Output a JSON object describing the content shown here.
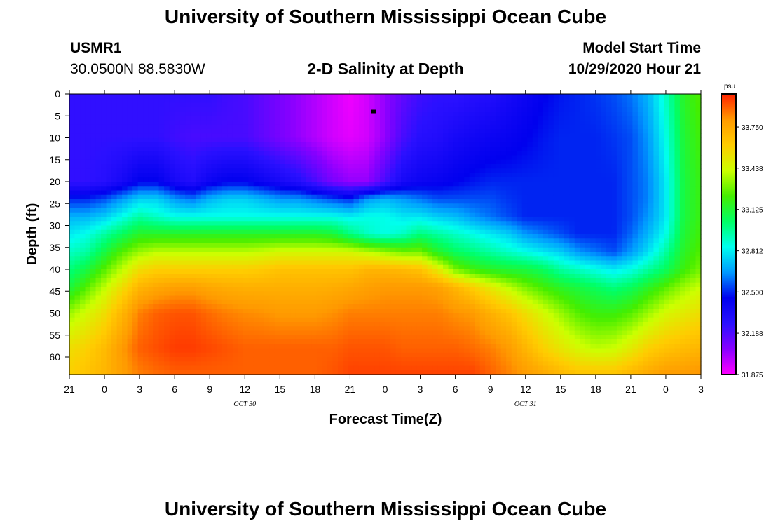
{
  "header": {
    "title": "University of Southern Mississippi Ocean Cube",
    "station": "USMR1",
    "coords": "30.0500N 88.5830W",
    "subtitle": "2-D Salinity at Depth",
    "model_label": "Model Start Time",
    "model_time": "10/29/2020 Hour 21"
  },
  "footer": {
    "title": "University of Southern Mississippi Ocean Cube"
  },
  "chart_data": {
    "type": "heatmap",
    "title": "2-D Salinity at Depth",
    "xlabel": "Forecast Time(Z)",
    "ylabel": "Depth (ft)",
    "x_hours": [
      0,
      3,
      6,
      9,
      12,
      15,
      18,
      21,
      24,
      27,
      30,
      33,
      36,
      39,
      42,
      45,
      48,
      51,
      54
    ],
    "x_tick_labels": [
      "21",
      "0",
      "3",
      "6",
      "9",
      "12",
      "15",
      "18",
      "21",
      "0",
      "3",
      "6",
      "9",
      "12",
      "15",
      "18",
      "21",
      "0",
      "3"
    ],
    "date_labels": [
      {
        "text": "OCT 30",
        "hour": 15
      },
      {
        "text": "OCT 31",
        "hour": 39
      }
    ],
    "xlim": [
      0,
      54
    ],
    "y_ticks": [
      0,
      5,
      10,
      15,
      20,
      25,
      30,
      35,
      40,
      45,
      50,
      55,
      60
    ],
    "ylim": [
      0,
      64
    ],
    "colorbar": {
      "unit": "psu",
      "range": [
        31.875,
        34.0
      ],
      "ticks": [
        "33.750",
        "33.438",
        "33.125",
        "32.812",
        "32.500",
        "32.188",
        "31.875"
      ],
      "tick_values": [
        33.75,
        33.438,
        33.125,
        32.812,
        32.5,
        32.188,
        31.875
      ],
      "colors": [
        "#ff00ff",
        "#8800ff",
        "#2a10ff",
        "#0000ee",
        "#0099ff",
        "#00ffee",
        "#00ff66",
        "#44ee00",
        "#ccff00",
        "#ffcc00",
        "#ff9900",
        "#ff2200"
      ]
    },
    "marker": {
      "hour": 26,
      "depth": 4
    },
    "grid_hours": [
      0,
      1.5,
      3,
      4.5,
      6,
      7.5,
      9,
      10.5,
      12,
      13.5,
      15,
      16.5,
      18,
      19.5,
      21,
      22.5,
      24,
      25.5,
      27,
      28.5,
      30,
      31.5,
      33,
      34.5,
      36,
      37.5,
      39,
      40.5,
      42,
      43.5,
      45,
      46.5,
      48,
      49.5,
      51,
      52.5,
      54
    ],
    "grid_depths": [
      0,
      10,
      20,
      24,
      28,
      32,
      36,
      40,
      44,
      50,
      58,
      64
    ],
    "salinity": [
      [
        32.25,
        32.25,
        32.25,
        32.5,
        32.7,
        32.8,
        32.9,
        33.0,
        33.1,
        33.35,
        33.55,
        33.6
      ],
      [
        32.25,
        32.25,
        32.25,
        32.5,
        32.7,
        32.85,
        32.95,
        33.1,
        33.25,
        33.45,
        33.6,
        33.65
      ],
      [
        32.25,
        32.25,
        32.28,
        32.55,
        32.75,
        32.95,
        33.1,
        33.25,
        33.4,
        33.55,
        33.68,
        33.7
      ],
      [
        32.25,
        32.25,
        32.35,
        32.65,
        32.85,
        33.05,
        33.25,
        33.4,
        33.55,
        33.7,
        33.8,
        33.78
      ],
      [
        32.25,
        32.25,
        32.45,
        32.75,
        32.95,
        33.15,
        33.35,
        33.55,
        33.7,
        33.85,
        33.9,
        33.85
      ],
      [
        32.25,
        32.25,
        32.45,
        32.75,
        32.9,
        33.15,
        33.4,
        33.6,
        33.75,
        33.9,
        33.93,
        33.88
      ],
      [
        32.25,
        32.22,
        32.35,
        32.65,
        32.85,
        33.15,
        33.4,
        33.6,
        33.78,
        33.92,
        33.96,
        33.9
      ],
      [
        32.25,
        32.2,
        32.3,
        32.6,
        32.85,
        33.15,
        33.4,
        33.6,
        33.78,
        33.92,
        33.96,
        33.9
      ],
      [
        32.25,
        32.2,
        32.4,
        32.7,
        32.85,
        33.15,
        33.4,
        33.6,
        33.75,
        33.88,
        33.94,
        33.9
      ],
      [
        32.22,
        32.2,
        32.45,
        32.75,
        32.85,
        33.15,
        33.4,
        33.6,
        33.73,
        33.85,
        33.92,
        33.9
      ],
      [
        32.2,
        32.2,
        32.45,
        32.75,
        32.85,
        33.15,
        33.4,
        33.6,
        33.72,
        33.83,
        33.9,
        33.9
      ],
      [
        32.15,
        32.15,
        32.4,
        32.7,
        32.85,
        33.15,
        33.42,
        33.62,
        33.72,
        33.82,
        33.9,
        33.9
      ],
      [
        32.1,
        32.1,
        32.35,
        32.65,
        32.85,
        33.15,
        33.45,
        33.65,
        33.72,
        33.8,
        33.9,
        33.9
      ],
      [
        32.05,
        32.05,
        32.3,
        32.65,
        32.85,
        33.15,
        33.45,
        33.65,
        33.72,
        33.8,
        33.9,
        33.9
      ],
      [
        32.0,
        32.0,
        32.2,
        32.6,
        32.85,
        33.15,
        33.45,
        33.65,
        33.72,
        33.8,
        33.9,
        33.9
      ],
      [
        31.95,
        31.95,
        32.1,
        32.55,
        32.85,
        33.12,
        33.45,
        33.65,
        33.73,
        33.82,
        33.9,
        33.92
      ],
      [
        31.9,
        31.92,
        32.05,
        32.5,
        32.82,
        33.0,
        33.45,
        33.65,
        33.75,
        33.85,
        33.92,
        33.95
      ],
      [
        31.95,
        31.95,
        32.05,
        32.65,
        32.85,
        32.9,
        33.4,
        33.7,
        33.78,
        33.85,
        33.92,
        33.95
      ],
      [
        32.05,
        32.05,
        32.2,
        32.7,
        32.85,
        32.85,
        33.35,
        33.7,
        33.8,
        33.85,
        33.92,
        33.95
      ],
      [
        32.15,
        32.2,
        32.35,
        32.65,
        32.8,
        32.9,
        33.3,
        33.68,
        33.8,
        33.85,
        33.9,
        33.95
      ],
      [
        32.22,
        32.28,
        32.4,
        32.6,
        32.8,
        33.0,
        33.3,
        33.65,
        33.8,
        33.85,
        33.9,
        33.95
      ],
      [
        32.25,
        32.3,
        32.42,
        32.55,
        32.75,
        32.95,
        33.15,
        33.5,
        33.78,
        33.85,
        33.9,
        33.95
      ],
      [
        32.25,
        32.35,
        32.45,
        32.55,
        32.72,
        32.9,
        33.05,
        33.3,
        33.7,
        33.82,
        33.9,
        33.95
      ],
      [
        32.28,
        32.38,
        32.48,
        32.55,
        32.65,
        32.85,
        33.0,
        33.2,
        33.6,
        33.8,
        33.88,
        33.95
      ],
      [
        32.3,
        32.4,
        32.5,
        32.55,
        32.6,
        32.8,
        32.95,
        33.15,
        33.5,
        33.72,
        33.85,
        33.9
      ],
      [
        32.35,
        32.42,
        32.5,
        32.52,
        32.55,
        32.75,
        32.9,
        33.12,
        33.4,
        33.65,
        33.8,
        33.85
      ],
      [
        32.4,
        32.45,
        32.5,
        32.5,
        32.5,
        32.65,
        32.85,
        33.1,
        33.3,
        33.55,
        33.7,
        33.8
      ],
      [
        32.45,
        32.48,
        32.5,
        32.5,
        32.5,
        32.6,
        32.8,
        33.05,
        33.22,
        33.45,
        33.6,
        33.75
      ],
      [
        32.48,
        32.5,
        32.5,
        32.5,
        32.5,
        32.55,
        32.75,
        32.95,
        33.15,
        33.35,
        33.52,
        33.7
      ],
      [
        32.5,
        32.5,
        32.5,
        32.5,
        32.5,
        32.5,
        32.65,
        32.9,
        33.1,
        33.25,
        33.45,
        33.65
      ],
      [
        32.52,
        32.5,
        32.5,
        32.5,
        32.5,
        32.5,
        32.6,
        32.85,
        33.05,
        33.2,
        33.4,
        33.65
      ],
      [
        32.55,
        32.52,
        32.5,
        32.5,
        32.5,
        32.5,
        32.55,
        32.8,
        33.0,
        33.2,
        33.42,
        33.65
      ],
      [
        32.6,
        32.55,
        32.55,
        32.55,
        32.55,
        32.58,
        32.65,
        32.85,
        33.05,
        33.25,
        33.5,
        33.7
      ],
      [
        32.7,
        32.65,
        32.62,
        32.62,
        32.65,
        32.7,
        32.78,
        32.95,
        33.15,
        33.35,
        33.6,
        33.75
      ],
      [
        32.9,
        32.85,
        32.8,
        32.8,
        32.8,
        32.85,
        32.95,
        33.05,
        33.25,
        33.45,
        33.65,
        33.8
      ],
      [
        33.15,
        33.12,
        33.1,
        33.1,
        33.1,
        33.12,
        33.15,
        33.2,
        33.35,
        33.5,
        33.68,
        33.8
      ],
      [
        33.25,
        33.22,
        33.2,
        33.2,
        33.2,
        33.22,
        33.25,
        33.3,
        33.42,
        33.55,
        33.7,
        33.82
      ]
    ]
  }
}
